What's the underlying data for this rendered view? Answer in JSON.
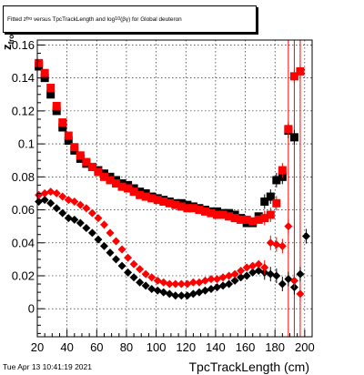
{
  "title_parts": {
    "a": "Fitted  z",
    "b": "fro",
    "c": "versus TpcTrackLength and log",
    "d": "10",
    "e": "(βγ) for Global deuteron"
  },
  "ylabel": "z",
  "ylabel_sub": "fro",
  "xlabel": "TpcTrackLength (cm)",
  "timestamp": "Tue Apr 13 10:41:19 2021",
  "colors": {
    "black": "#000000",
    "red": "#ff0000"
  },
  "chart_data": {
    "type": "scatter",
    "title": "Fitted  zfro versus TpcTrackLength and log10(βγ) for Global deuteron",
    "xlabel": "TpcTrackLength (cm)",
    "ylabel": "zfro",
    "xlim": [
      20,
      205
    ],
    "ylim": [
      -0.017,
      0.163
    ],
    "grid": true,
    "xticks": [
      20,
      40,
      60,
      80,
      100,
      120,
      140,
      160,
      180,
      200
    ],
    "yticks": [
      0,
      0.02,
      0.04,
      0.06,
      0.08,
      0.1,
      0.12,
      0.14,
      0.16
    ],
    "ytick_labels": [
      "0",
      "0.02",
      "0.04",
      "0.06",
      "0.08",
      "0.1",
      "0.12",
      "0.14",
      "0.16"
    ],
    "series": [
      {
        "marker": "square",
        "color": "#000000",
        "x": [
          21,
          25,
          29,
          33,
          37,
          41,
          45,
          49,
          53,
          57,
          61,
          65,
          69,
          73,
          77,
          81,
          85,
          89,
          93,
          97,
          101,
          105,
          109,
          113,
          117,
          121,
          125,
          129,
          133,
          137,
          141,
          145,
          149,
          153,
          157,
          161,
          165,
          169,
          173,
          177,
          181,
          185,
          189,
          193,
          197
        ],
        "y": [
          0.147,
          0.14,
          0.13,
          0.12,
          0.11,
          0.102,
          0.096,
          0.091,
          0.088,
          0.086,
          0.084,
          0.082,
          0.08,
          0.078,
          0.076,
          0.075,
          0.073,
          0.071,
          0.07,
          0.068,
          0.067,
          0.066,
          0.065,
          0.064,
          0.064,
          0.063,
          0.062,
          0.061,
          0.06,
          0.059,
          0.059,
          0.058,
          0.058,
          0.057,
          0.055,
          0.052,
          0.052,
          0.056,
          0.065,
          0.068,
          0.078,
          0.08,
          0.108,
          0.104,
          null
        ]
      },
      {
        "marker": "square",
        "color": "#ff0000",
        "x": [
          21,
          25,
          29,
          33,
          37,
          41,
          45,
          49,
          53,
          57,
          61,
          65,
          69,
          73,
          77,
          81,
          85,
          89,
          93,
          97,
          101,
          105,
          109,
          113,
          117,
          121,
          125,
          129,
          133,
          137,
          141,
          145,
          149,
          153,
          157,
          161,
          165,
          169,
          173,
          177,
          181,
          185,
          189,
          193,
          197
        ],
        "y": [
          0.149,
          0.143,
          0.134,
          0.123,
          0.113,
          0.105,
          0.098,
          0.093,
          0.089,
          0.086,
          0.083,
          0.08,
          0.078,
          0.076,
          0.074,
          0.073,
          0.071,
          0.069,
          0.068,
          0.067,
          0.066,
          0.065,
          0.064,
          0.063,
          0.062,
          0.061,
          0.061,
          0.06,
          0.059,
          0.058,
          0.057,
          0.057,
          0.056,
          0.055,
          0.054,
          0.054,
          0.053,
          0.054,
          0.055,
          0.057,
          0.064,
          0.084,
          0.109,
          0.141,
          0.144
        ]
      },
      {
        "marker": "diamond",
        "color": "#000000",
        "x": [
          21,
          25,
          29,
          33,
          37,
          41,
          45,
          49,
          53,
          57,
          61,
          65,
          69,
          73,
          77,
          81,
          85,
          89,
          93,
          97,
          101,
          105,
          109,
          113,
          117,
          121,
          125,
          129,
          133,
          137,
          141,
          145,
          149,
          153,
          157,
          161,
          165,
          169,
          173,
          177,
          181,
          185,
          189,
          193,
          197,
          201
        ],
        "y": [
          0.065,
          0.066,
          0.064,
          0.061,
          0.058,
          0.055,
          0.054,
          0.052,
          0.049,
          0.046,
          0.042,
          0.038,
          0.034,
          0.03,
          0.026,
          0.022,
          0.019,
          0.016,
          0.014,
          0.012,
          0.011,
          0.01,
          0.009,
          0.008,
          0.008,
          0.008,
          0.009,
          0.01,
          0.011,
          0.012,
          0.013,
          0.014,
          0.015,
          0.017,
          0.019,
          0.02,
          0.022,
          0.023,
          0.022,
          0.021,
          0.02,
          0.015,
          0.018,
          0.013,
          0.021,
          0.044
        ]
      },
      {
        "marker": "diamond",
        "color": "#ff0000",
        "x": [
          21,
          25,
          29,
          33,
          37,
          41,
          45,
          49,
          53,
          57,
          61,
          65,
          69,
          73,
          77,
          81,
          85,
          89,
          93,
          97,
          101,
          105,
          109,
          113,
          117,
          121,
          125,
          129,
          133,
          137,
          141,
          145,
          149,
          153,
          157,
          161,
          165,
          169,
          173,
          177,
          181,
          185,
          189,
          193,
          197
        ],
        "y": [
          0.069,
          0.07,
          0.071,
          0.07,
          0.068,
          0.066,
          0.065,
          0.063,
          0.061,
          0.058,
          0.055,
          0.051,
          0.046,
          0.041,
          0.036,
          0.031,
          0.027,
          0.024,
          0.021,
          0.019,
          0.017,
          0.016,
          0.015,
          0.015,
          0.015,
          0.015,
          0.016,
          0.016,
          0.017,
          0.018,
          0.018,
          0.019,
          0.02,
          0.021,
          0.023,
          0.025,
          0.026,
          0.027,
          0.025,
          0.04,
          0.039,
          0.038,
          0.05,
          0.017,
          0.009
        ]
      }
    ]
  }
}
